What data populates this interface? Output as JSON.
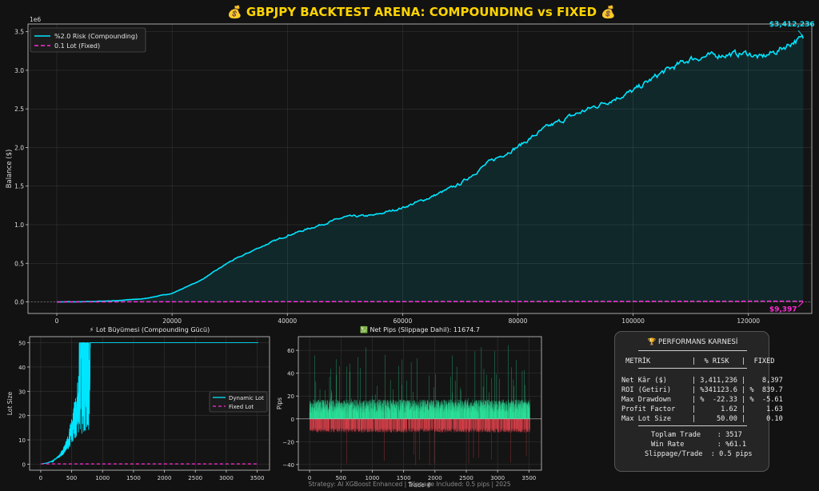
{
  "title": "💰 GBPJPY BACKTEST ARENA: COMPOUNDING vs FIXED 💰",
  "footer": "Strategy: AI XGBoost Enhanced | Slippage Included: 0.5 pips | 2025",
  "colors": {
    "compounding": "#00e5ff",
    "fixed": "#ff2bd6",
    "title": "#ffd400",
    "gain": "#2ee59d",
    "loss": "#e0444e"
  },
  "chart_data": [
    {
      "type": "area",
      "title": "",
      "xlabel": "",
      "ylabel": "Balance ($)",
      "y_offset_label": "1e6",
      "xlim": [
        -5000,
        131000
      ],
      "ylim": [
        -150000,
        3600000
      ],
      "x_ticks": [
        "0",
        "20000",
        "40000",
        "60000",
        "80000",
        "100000",
        "120000"
      ],
      "y_ticks": [
        "0.0",
        "0.5",
        "1.0",
        "1.5",
        "2.0",
        "2.5",
        "3.0",
        "3.5"
      ],
      "grid": true,
      "legend": "upper-left",
      "series": [
        {
          "name": "%2.0 Risk (Compounding)",
          "style": "solid",
          "x": [
            0,
            5000,
            10000,
            15000,
            20000,
            25000,
            30000,
            35000,
            40000,
            45000,
            50000,
            55000,
            60000,
            65000,
            70000,
            75000,
            80000,
            85000,
            90000,
            95000,
            100000,
            105000,
            110000,
            115000,
            120000,
            122000,
            125000,
            128000,
            129500
          ],
          "values": [
            0,
            2000,
            15000,
            40000,
            110000,
            280000,
            520000,
            700000,
            860000,
            980000,
            1100000,
            1120000,
            1220000,
            1360000,
            1530000,
            1810000,
            2010000,
            2260000,
            2430000,
            2580000,
            2730000,
            2970000,
            3150000,
            3200000,
            3220000,
            3160000,
            3250000,
            3380000,
            3412236
          ],
          "end_label": "$3,412,236"
        },
        {
          "name": "0.1 Lot (Fixed)",
          "style": "dashed",
          "x": [
            0,
            129500
          ],
          "values": [
            0,
            9397
          ],
          "end_label": "$9,397"
        }
      ]
    },
    {
      "type": "line",
      "title": "⚡ Lot Büyümesi (Compounding Gücü)",
      "xlabel": "",
      "ylabel": "Lot Size",
      "xlim": [
        -180,
        3700
      ],
      "ylim": [
        -2.5,
        52.5
      ],
      "x_ticks": [
        "0",
        "500",
        "1000",
        "1500",
        "2000",
        "2500",
        "3000",
        "3500"
      ],
      "y_ticks": [
        "0",
        "10",
        "20",
        "30",
        "40",
        "50"
      ],
      "grid": true,
      "legend": "center-right",
      "series": [
        {
          "name": "Dynamic Lot",
          "style": "solid",
          "x": [
            0,
            100,
            200,
            300,
            350,
            400,
            450,
            500,
            550,
            600,
            650,
            700,
            750,
            3517
          ],
          "values": [
            0.1,
            0.5,
            1.5,
            4,
            6,
            9,
            13,
            19,
            27,
            37,
            48,
            50,
            50,
            50
          ]
        },
        {
          "name": "Fixed Lot",
          "style": "dashed",
          "x": [
            0,
            3517
          ],
          "values": [
            0.1,
            0.1
          ]
        }
      ]
    },
    {
      "type": "bar",
      "title": "💹 Net Pips (Slippage Dahil): 11674.7",
      "xlabel": "Trade #",
      "ylabel": "Pips",
      "xlim": [
        -180,
        3700
      ],
      "ylim": [
        -45,
        72
      ],
      "x_ticks": [
        "0",
        "500",
        "1000",
        "1500",
        "2000",
        "2500",
        "3000",
        "3500"
      ],
      "y_ticks": [
        "−40",
        "−20",
        "0",
        "20",
        "40",
        "60"
      ],
      "grid": true,
      "trade_count": 3517,
      "typical_gain_range": [
        5,
        17
      ],
      "typical_loss_range": [
        -12,
        -8
      ],
      "max_gain": 66,
      "min_loss": -41
    }
  ],
  "scorecard": {
    "title": "🏆 PERFORMANS KARNESİ",
    "header": " METRİK          |  % RISK   |  FIXED",
    "rows": [
      "Net Kâr ($)      | 3,411,236 |    8,397",
      "ROI (Getiri)     | %341123.6 | %  839.7",
      "Max Drawdown     | %  -22.33 | %  -5.61",
      "Profit Factor    |      1.62 |     1.63",
      "Max Lot Size     |     50.00 |     0.10"
    ],
    "stats": [
      "Toplam Trade    : 3517",
      "Win Rate        : %61.1",
      "Slippage/Trade  : 0.5 pips"
    ]
  }
}
